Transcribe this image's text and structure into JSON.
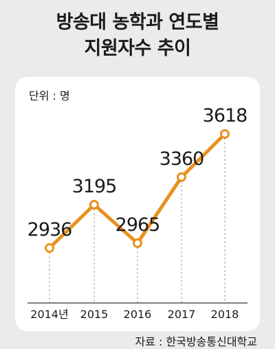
{
  "title_line1": "방송대 농학과 연도별",
  "title_line2": "지원자수 추이",
  "unit_label": "단위 : 명",
  "source": "자료 : 한국방송통신대학교",
  "colors": {
    "line": "#e8901f",
    "background": "#ebebeb",
    "panel": "#ffffff"
  },
  "chart_data": {
    "type": "line",
    "title": "방송대 농학과 연도별 지원자수 추이",
    "categories": [
      "2014년",
      "2015",
      "2016",
      "2017",
      "2018"
    ],
    "values": [
      2936,
      3195,
      2965,
      3360,
      3618
    ],
    "xlabel": "",
    "ylabel": "단위 : 명",
    "grid": false,
    "legend": "none"
  }
}
